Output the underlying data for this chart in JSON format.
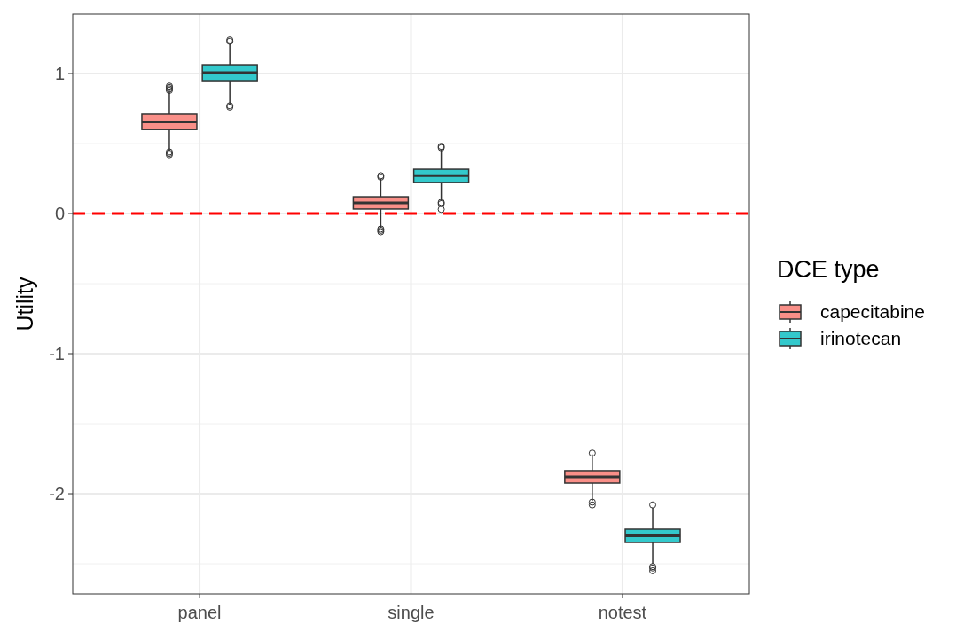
{
  "chart_data": {
    "type": "box",
    "ylabel": "Utility",
    "legend_title": "DCE type",
    "categories": [
      "panel",
      "single",
      "notest"
    ],
    "series": [
      {
        "name": "capecitabine",
        "color": "#f98f88",
        "boxes": [
          {
            "low": 0.45,
            "q1": 0.6,
            "median": 0.655,
            "q3": 0.709,
            "high": 0.87,
            "outliers": [
              0.42,
              0.43,
              0.44,
              0.88,
              0.89,
              0.9,
              0.91
            ]
          },
          {
            "low": -0.1,
            "q1": 0.032,
            "median": 0.076,
            "q3": 0.12,
            "high": 0.25,
            "outliers": [
              -0.13,
              -0.12,
              -0.11,
              0.26,
              0.27
            ]
          },
          {
            "low": -2.05,
            "q1": -1.924,
            "median": -1.88,
            "q3": -1.835,
            "high": -1.72,
            "outliers": [
              -2.08,
              -2.06,
              -1.71
            ]
          }
        ]
      },
      {
        "name": "irinotecan",
        "color": "#33c9cc",
        "boxes": [
          {
            "low": 0.78,
            "q1": 0.949,
            "median": 1.006,
            "q3": 1.063,
            "high": 1.22,
            "outliers": [
              0.76,
              0.77,
              1.23,
              1.24
            ]
          },
          {
            "low": 0.09,
            "q1": 0.222,
            "median": 0.27,
            "q3": 0.316,
            "high": 0.46,
            "outliers": [
              0.03,
              0.07,
              0.08,
              0.47,
              0.48
            ]
          },
          {
            "low": -2.5,
            "q1": -2.348,
            "median": -2.3,
            "q3": -2.253,
            "high": -2.1,
            "outliers": [
              -2.55,
              -2.53,
              -2.52,
              -2.08
            ]
          }
        ]
      }
    ],
    "ylim": [
      -2.715,
      1.424
    ],
    "yticks": [
      -2,
      -1,
      0,
      1
    ],
    "grid": true,
    "legend": "right",
    "ref_lines": [
      {
        "axis": "y",
        "value": 0,
        "color": "#ff0000",
        "line_style": "dashed"
      }
    ]
  }
}
